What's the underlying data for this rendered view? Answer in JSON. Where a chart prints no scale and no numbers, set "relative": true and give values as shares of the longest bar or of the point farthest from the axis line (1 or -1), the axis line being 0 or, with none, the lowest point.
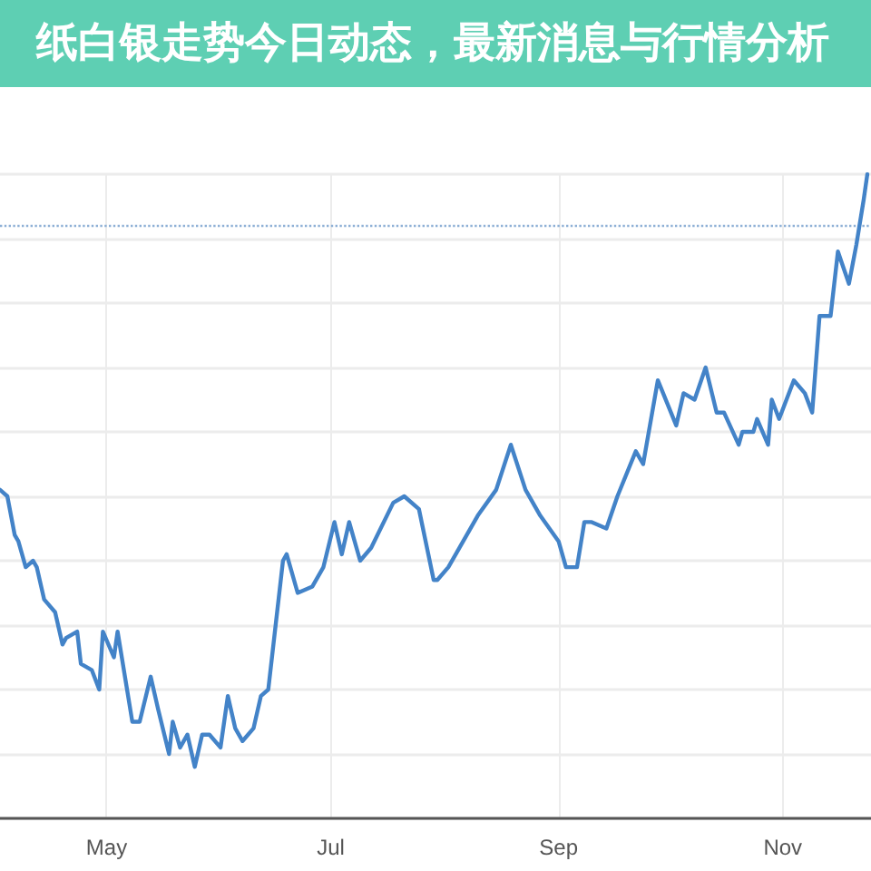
{
  "chart_data": {
    "type": "line",
    "title": "纸白银走势今日动态，最新消息与行情分析",
    "relative": true,
    "grid": true,
    "marker": "none",
    "line_style": "solid",
    "xlim": [
      "--04-02",
      "--11-25"
    ],
    "xticks": [
      {
        "value": "--05-01",
        "label": "May"
      },
      {
        "value": "--07-01",
        "label": "Jul"
      },
      {
        "value": "--09-01",
        "label": "Sep"
      },
      {
        "value": "--11-01",
        "label": "Nov"
      }
    ],
    "ref_lines": [
      {
        "axis": "y",
        "value": 0.92,
        "color": "#8fb1d6",
        "line_style": "dotted"
      }
    ],
    "x": [
      "--04-02",
      "--04-04",
      "--04-06",
      "--04-07",
      "--04-09",
      "--04-11",
      "--04-12",
      "--04-14",
      "--04-17",
      "--04-19",
      "--04-20",
      "--04-23",
      "--04-24",
      "--04-27",
      "--04-29",
      "--04-30",
      "--05-03",
      "--05-04",
      "--05-08",
      "--05-10",
      "--05-13",
      "--05-15",
      "--05-18",
      "--05-19",
      "--05-21",
      "--05-23",
      "--05-25",
      "--05-27",
      "--05-29",
      "--06-01",
      "--06-03",
      "--06-05",
      "--06-07",
      "--06-10",
      "--06-12",
      "--06-14",
      "--06-18",
      "--06-19",
      "--06-22",
      "--06-26",
      "--06-29",
      "--07-02",
      "--07-04",
      "--07-06",
      "--07-09",
      "--07-12",
      "--07-18",
      "--07-21",
      "--07-25",
      "--07-29",
      "--07-30",
      "--08-02",
      "--08-05",
      "--08-10",
      "--08-15",
      "--08-19",
      "--08-23",
      "--08-27",
      "--09-01",
      "--09-03",
      "--09-06",
      "--09-08",
      "--09-10",
      "--09-14",
      "--09-17",
      "--09-22",
      "--09-24",
      "--09-28",
      "--10-03",
      "--10-05",
      "--10-08",
      "--10-11",
      "--10-14",
      "--10-16",
      "--10-20",
      "--10-21",
      "--10-24",
      "--10-25",
      "--10-28",
      "--10-29",
      "--10-31",
      "--11-02",
      "--11-04",
      "--11-07",
      "--11-09",
      "--11-11",
      "--11-14",
      "--11-16",
      "--11-19",
      "--11-21",
      "--11-23",
      "--11-24"
    ],
    "series": [
      {
        "color": "#4383c8",
        "values": [
          0.51,
          0.5,
          0.44,
          0.43,
          0.39,
          0.4,
          0.39,
          0.34,
          0.32,
          0.27,
          0.28,
          0.29,
          0.24,
          0.23,
          0.2,
          0.29,
          0.25,
          0.29,
          0.15,
          0.15,
          0.22,
          0.17,
          0.1,
          0.15,
          0.11,
          0.13,
          0.08,
          0.13,
          0.13,
          0.11,
          0.19,
          0.14,
          0.12,
          0.14,
          0.19,
          0.2,
          0.4,
          0.41,
          0.35,
          0.36,
          0.39,
          0.46,
          0.41,
          0.46,
          0.4,
          0.42,
          0.49,
          0.5,
          0.48,
          0.37,
          0.37,
          0.39,
          0.42,
          0.47,
          0.51,
          0.58,
          0.51,
          0.47,
          0.43,
          0.39,
          0.39,
          0.46,
          0.46,
          0.45,
          0.5,
          0.57,
          0.55,
          0.68,
          0.61,
          0.66,
          0.65,
          0.7,
          0.63,
          0.63,
          0.58,
          0.6,
          0.6,
          0.62,
          0.58,
          0.65,
          0.62,
          0.65,
          0.68,
          0.66,
          0.63,
          0.78,
          0.78,
          0.88,
          0.83,
          0.89,
          0.96,
          1
        ]
      }
    ]
  }
}
